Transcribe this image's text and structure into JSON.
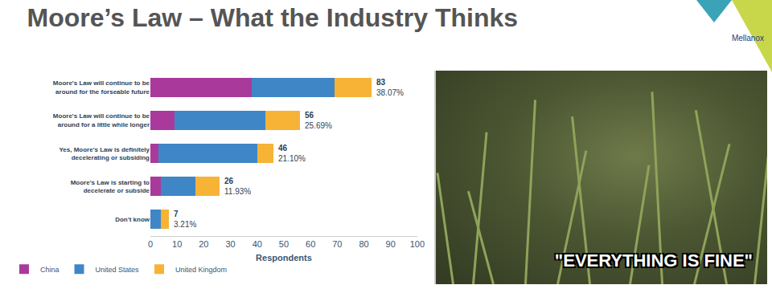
{
  "chart_data": {
    "type": "bar",
    "title": "Moore’s Law – What the Industry Thinks",
    "xlabel": "Respondents",
    "orientation": "horizontal",
    "stacked": true,
    "grid": false,
    "legend": "bottom left",
    "categories": [
      "Moore's Law will continue to be around for the forseable future",
      "Moore's Law will continue to be around for a little while longer",
      "Yes, Moore's Law is definitely decelerating or subsiding",
      "Moore's Law is starting to decelerate or subside",
      "Don't know"
    ],
    "series": [
      {
        "name": "China",
        "color": "#a93a9c",
        "values": [
          38,
          9,
          3,
          4,
          0
        ]
      },
      {
        "name": "United States",
        "color": "#3f86c6",
        "values": [
          31,
          34,
          37,
          13,
          4
        ]
      },
      {
        "name": "United Kingdom",
        "color": "#f6b336",
        "values": [
          14,
          13,
          6,
          9,
          3
        ]
      }
    ],
    "totals": [
      83,
      56,
      46,
      26,
      7
    ],
    "total_labels": [
      "38.07%",
      "25.69%",
      "21.10%",
      "11.93%",
      "3.21%"
    ],
    "xlim": [
      0,
      100
    ],
    "xticks": [
      0,
      10,
      20,
      30,
      40,
      50,
      60,
      70,
      80,
      90,
      100
    ]
  },
  "image": {
    "caption": "\"EVERYTHING IS FINE\""
  },
  "logo": {
    "text": "Mellanox"
  }
}
